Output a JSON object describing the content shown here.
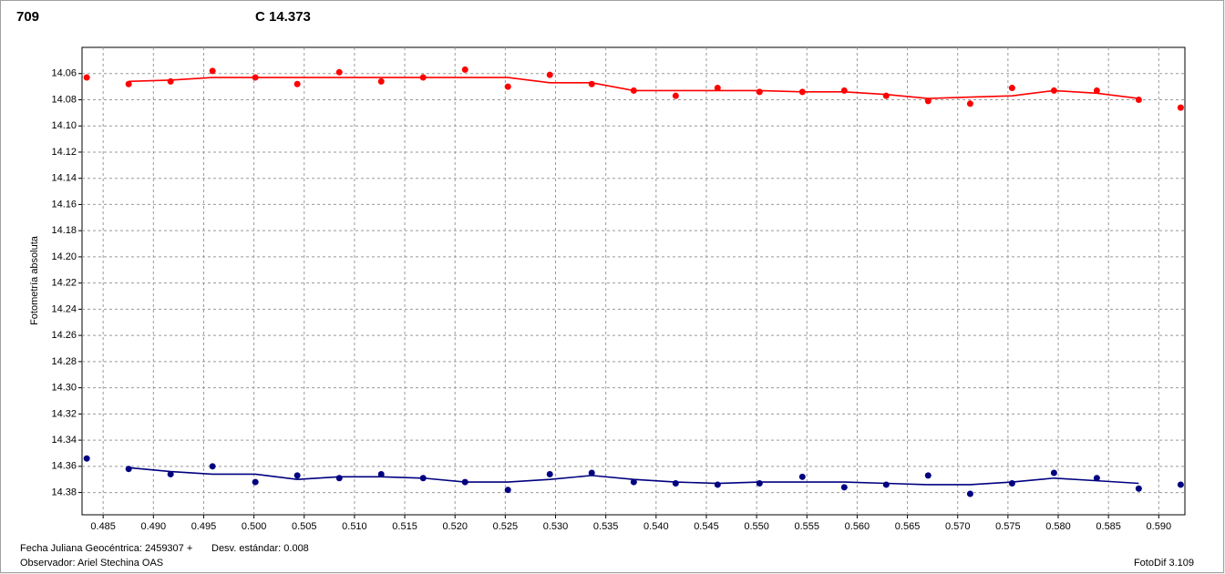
{
  "chart_data": {
    "type": "scatter",
    "ylabel": "Fotometría absoluta",
    "inverted_y": true,
    "grid": true,
    "xlim": [
      0.4829,
      0.5926
    ],
    "ylim": [
      14.04,
      14.397
    ],
    "xticks": [
      0.485,
      {
        "value": 0.49,
        "label": "0.490"
      },
      0.495,
      {
        "value": 0.5,
        "label": "0.500"
      },
      0.505,
      {
        "value": 0.51,
        "label": "0.510"
      },
      0.515,
      {
        "value": 0.52,
        "label": "0.520"
      },
      0.525,
      {
        "value": 0.53,
        "label": "0.530"
      },
      0.535,
      {
        "value": 0.54,
        "label": "0.540"
      },
      0.545,
      {
        "value": 0.55,
        "label": "0.550"
      },
      0.555,
      {
        "value": 0.56,
        "label": "0.560"
      },
      0.565,
      {
        "value": 0.57,
        "label": "0.570"
      },
      0.575,
      {
        "value": 0.58,
        "label": "0.580"
      },
      0.585,
      {
        "value": 0.59,
        "label": "0.590"
      }
    ],
    "yticks": [
      14.06,
      14.08,
      {
        "value": 14.1,
        "label": "14.10"
      },
      14.12,
      14.14,
      14.16,
      14.18,
      {
        "value": 14.2,
        "label": "14.20"
      },
      14.22,
      14.24,
      14.26,
      14.28,
      {
        "value": 14.3,
        "label": "14.30"
      },
      14.32,
      14.34,
      14.36,
      14.38
    ],
    "x": [
      0.48337,
      0.48754,
      0.49171,
      0.49588,
      0.50014,
      0.50431,
      0.50849,
      0.51266,
      0.51683,
      0.521,
      0.52526,
      0.52943,
      0.5336,
      0.53778,
      0.54195,
      0.54612,
      0.55029,
      0.55455,
      0.55872,
      0.56289,
      0.56706,
      0.57124,
      0.57541,
      0.57958,
      0.58384,
      0.58801,
      0.59218
    ],
    "series": [
      {
        "name": "709",
        "color": "#ff0000",
        "values": [
          14.063,
          14.068,
          14.066,
          14.058,
          14.063,
          14.068,
          14.059,
          14.066,
          14.063,
          14.057,
          14.07,
          14.061,
          14.068,
          14.073,
          14.077,
          14.071,
          14.074,
          14.074,
          14.073,
          14.077,
          14.081,
          14.083,
          14.071,
          14.073,
          14.073,
          14.08,
          14.086
        ],
        "fit_values": [
          null,
          14.066,
          14.065,
          14.063,
          14.063,
          14.063,
          14.063,
          14.063,
          14.063,
          14.063,
          14.063,
          14.067,
          14.067,
          14.073,
          14.073,
          14.073,
          14.073,
          14.074,
          14.074,
          14.076,
          14.079,
          14.078,
          14.077,
          14.073,
          14.075,
          14.079,
          null
        ]
      },
      {
        "name": "C 14.373",
        "color": "#000080",
        "values": [
          14.354,
          14.362,
          14.366,
          14.36,
          14.372,
          14.367,
          14.369,
          14.366,
          14.369,
          14.372,
          14.378,
          14.366,
          14.365,
          14.372,
          14.373,
          14.374,
          14.373,
          14.368,
          14.376,
          14.374,
          14.367,
          14.381,
          14.373,
          14.365,
          14.369,
          14.377,
          14.374
        ],
        "fit_values": [
          null,
          14.361,
          14.364,
          14.366,
          14.366,
          14.37,
          14.368,
          14.368,
          14.369,
          14.372,
          14.372,
          14.37,
          14.367,
          14.37,
          14.372,
          14.373,
          14.372,
          14.372,
          14.372,
          14.373,
          14.374,
          14.374,
          14.372,
          14.369,
          14.371,
          14.373,
          null
        ]
      }
    ]
  },
  "footer": {
    "date": "Fecha Juliana Geocéntrica: 2459307 +",
    "stdev": "Desv. estándar: 0.008",
    "observer": "Observador: Ariel Stechina OAS",
    "software": "FotoDif 3.109"
  }
}
